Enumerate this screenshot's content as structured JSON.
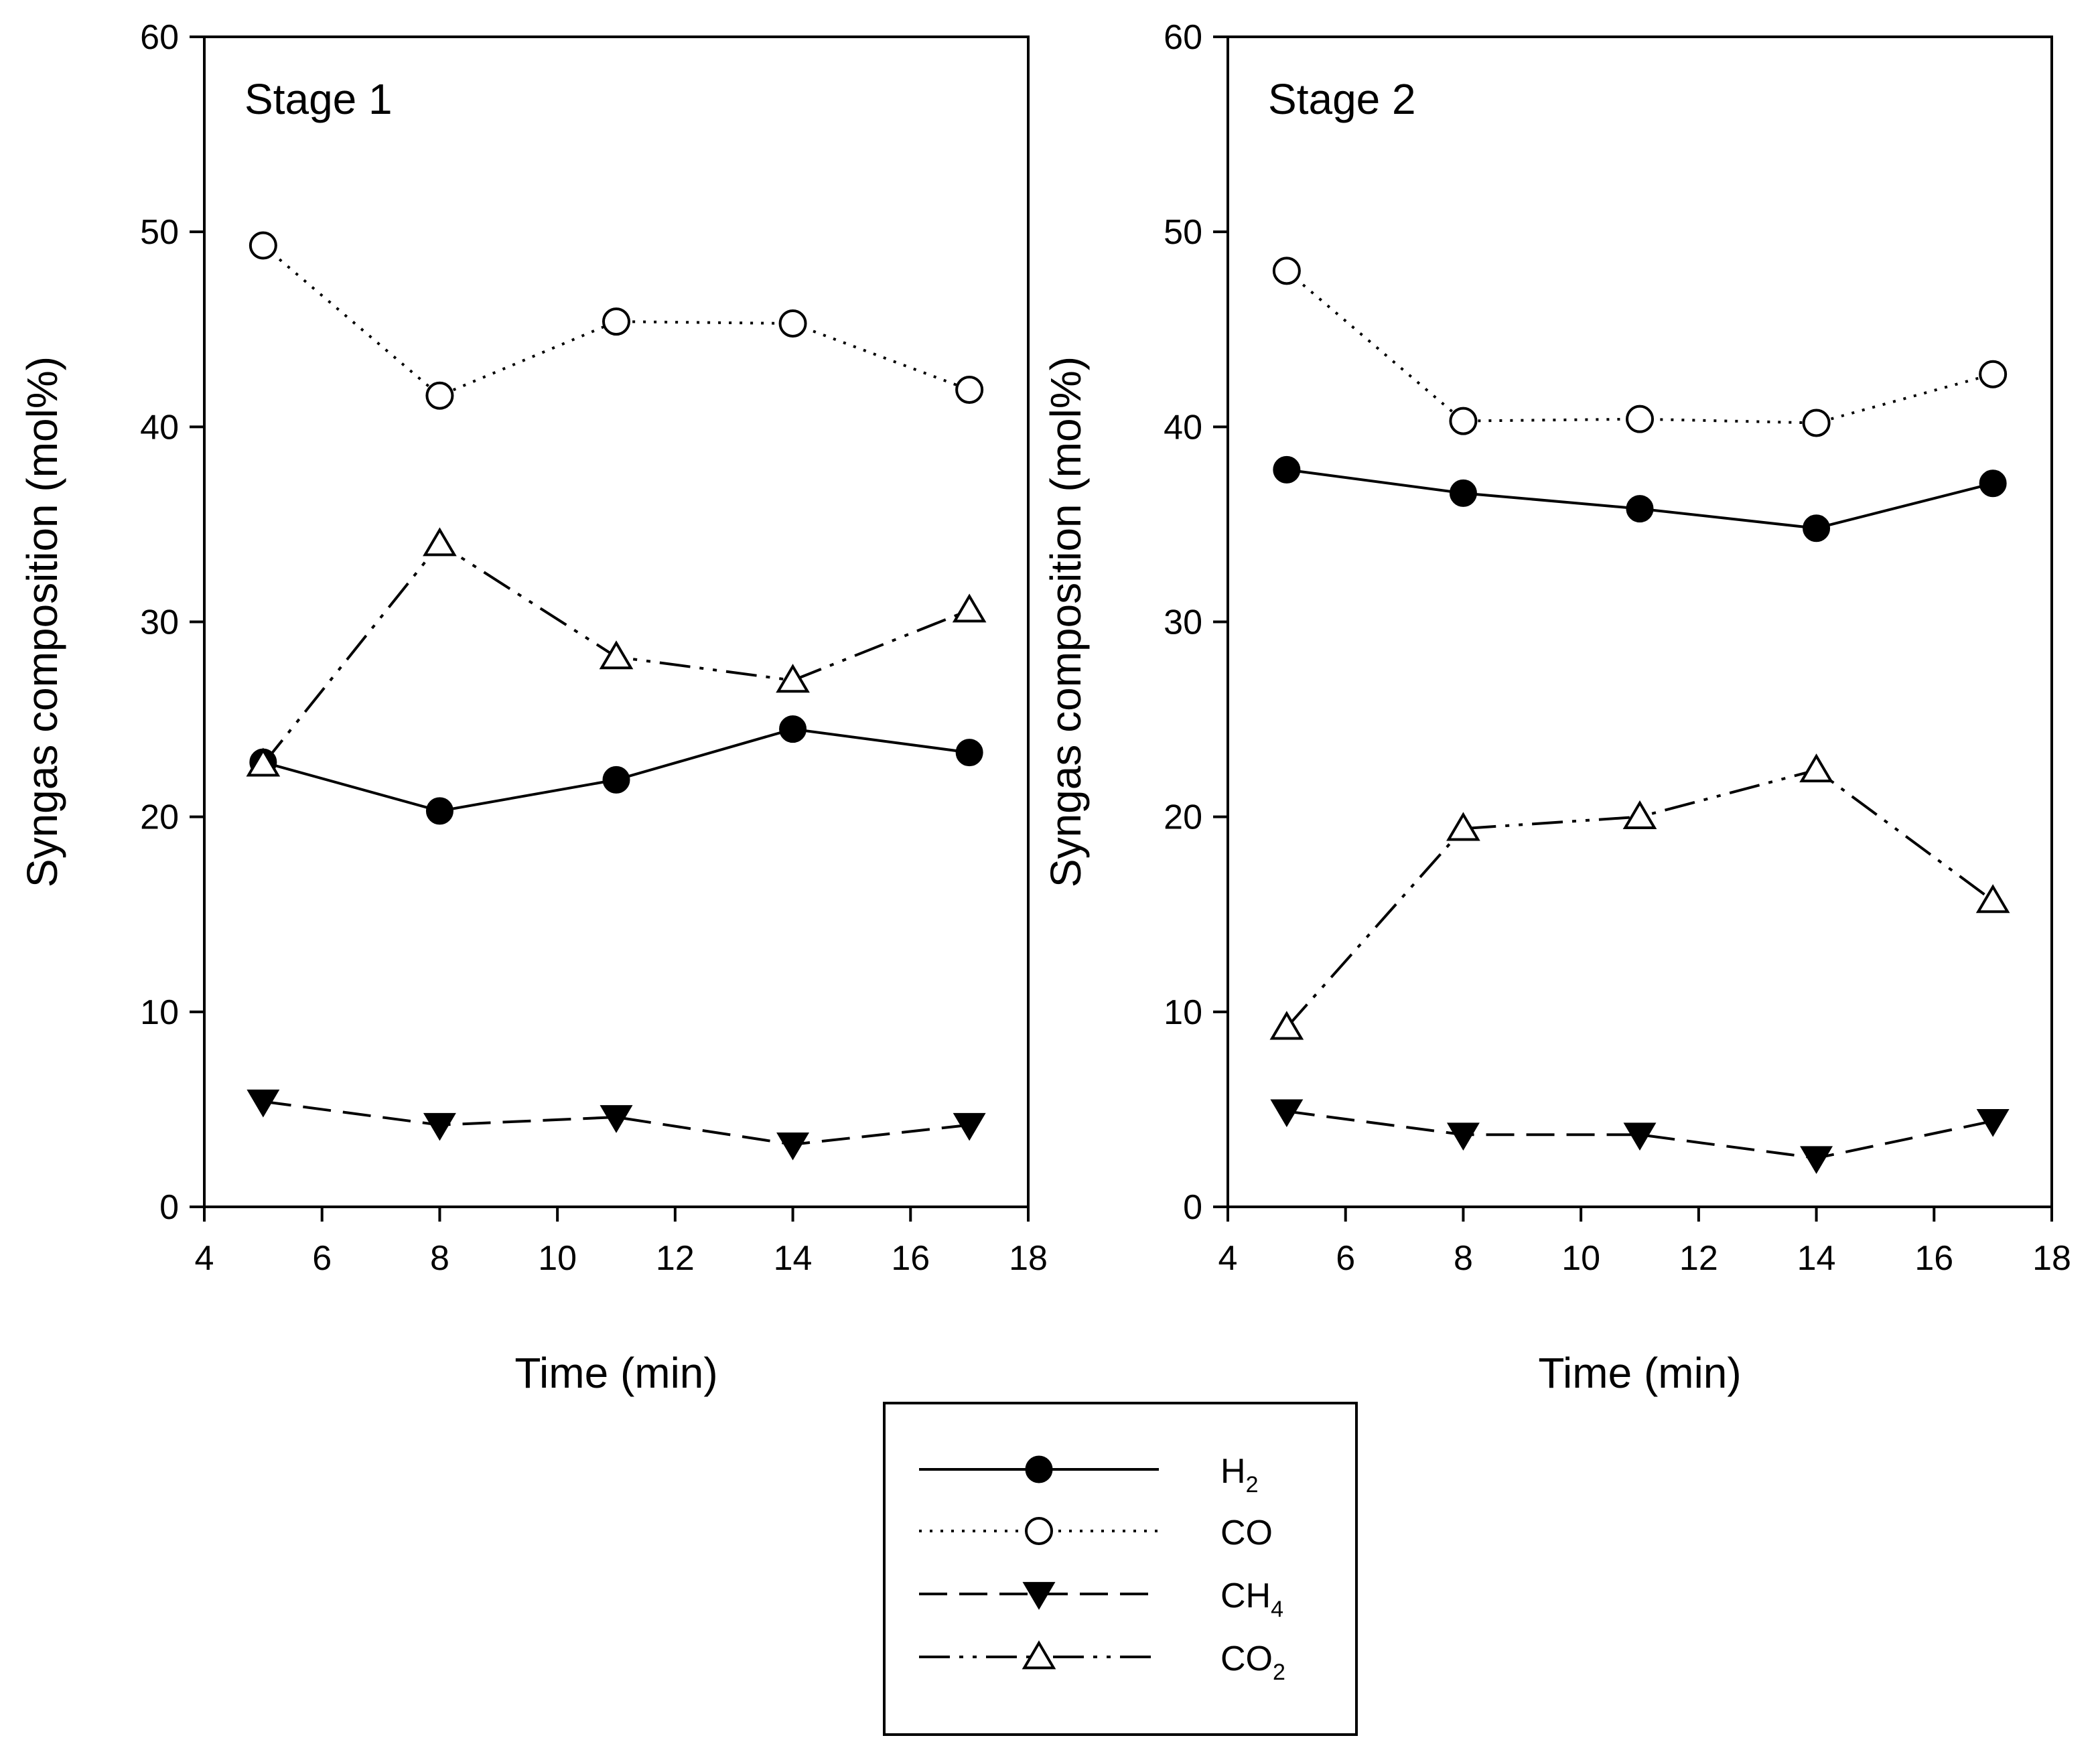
{
  "chart_data": [
    {
      "type": "line",
      "title": "Stage 1",
      "xlabel": "Time (min)",
      "ylabel": "Syngas composition (mol%)",
      "xlim": [
        4,
        18
      ],
      "ylim": [
        0,
        60
      ],
      "xticks": [
        4,
        6,
        8,
        10,
        12,
        14,
        16,
        18
      ],
      "yticks": [
        0,
        10,
        20,
        30,
        40,
        50,
        60
      ],
      "grid": false,
      "x": [
        5,
        8,
        11,
        14,
        17
      ],
      "series": [
        {
          "name": "H2",
          "values": [
            22.8,
            20.3,
            21.9,
            24.5,
            23.3
          ]
        },
        {
          "name": "CO",
          "values": [
            49.3,
            41.6,
            45.4,
            45.3,
            41.9
          ]
        },
        {
          "name": "CH4",
          "values": [
            5.4,
            4.2,
            4.6,
            3.2,
            4.2
          ]
        },
        {
          "name": "CO2",
          "values": [
            22.7,
            34.0,
            28.2,
            27.0,
            30.6
          ]
        }
      ]
    },
    {
      "type": "line",
      "title": "Stage 2",
      "xlabel": "Time (min)",
      "ylabel": "Syngas composition (mol%)",
      "xlim": [
        4,
        18
      ],
      "ylim": [
        0,
        60
      ],
      "xticks": [
        4,
        6,
        8,
        10,
        12,
        14,
        16,
        18
      ],
      "yticks": [
        0,
        10,
        20,
        30,
        40,
        50,
        60
      ],
      "grid": false,
      "x": [
        5,
        8,
        11,
        14,
        17
      ],
      "series": [
        {
          "name": "H2",
          "values": [
            37.8,
            36.6,
            35.8,
            34.8,
            37.1
          ]
        },
        {
          "name": "CO",
          "values": [
            48.0,
            40.3,
            40.4,
            40.2,
            42.7
          ]
        },
        {
          "name": "CH4",
          "values": [
            4.9,
            3.7,
            3.7,
            2.5,
            4.4
          ]
        },
        {
          "name": "CO2",
          "values": [
            9.2,
            19.4,
            20.0,
            22.4,
            15.7
          ]
        }
      ]
    }
  ],
  "legend": {
    "placement": "bottom-center",
    "entries": [
      {
        "base": "H",
        "sub": "2",
        "series": "H2",
        "line": "solid",
        "marker": "filled-circle"
      },
      {
        "base": "CO",
        "sub": "",
        "series": "CO",
        "line": "dotted",
        "marker": "open-circle"
      },
      {
        "base": "CH",
        "sub": "4",
        "series": "CH4",
        "line": "dashed",
        "marker": "filled-triangle-down"
      },
      {
        "base": "CO",
        "sub": "2",
        "series": "CO2",
        "line": "dash-dot-dot",
        "marker": "open-triangle-up"
      }
    ]
  },
  "colors": {
    "line": "#000000",
    "background": "#ffffff"
  }
}
